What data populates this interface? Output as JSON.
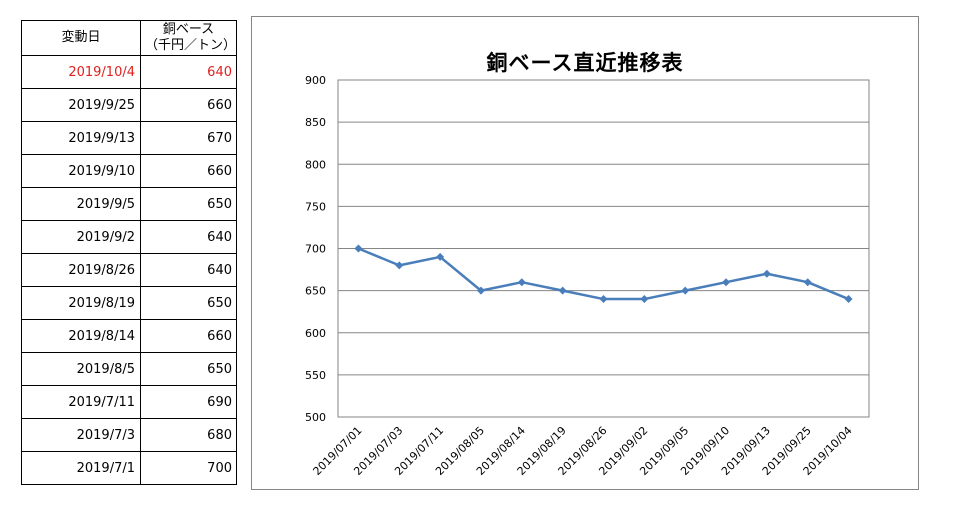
{
  "table": {
    "header_date": "変動日",
    "header_price_line1": "銅ベース",
    "header_price_line2": "（千円／トン）",
    "highlight_color": "#e02020",
    "rows": [
      {
        "date": "2019/10/4",
        "price": "640",
        "highlight": true
      },
      {
        "date": "2019/9/25",
        "price": "660"
      },
      {
        "date": "2019/9/13",
        "price": "670"
      },
      {
        "date": "2019/9/10",
        "price": "660"
      },
      {
        "date": "2019/9/5",
        "price": "650"
      },
      {
        "date": "2019/9/2",
        "price": "640"
      },
      {
        "date": "2019/8/26",
        "price": "640"
      },
      {
        "date": "2019/8/19",
        "price": "650"
      },
      {
        "date": "2019/8/14",
        "price": "660"
      },
      {
        "date": "2019/8/5",
        "price": "650"
      },
      {
        "date": "2019/7/11",
        "price": "690"
      },
      {
        "date": "2019/7/3",
        "price": "680"
      },
      {
        "date": "2019/7/1",
        "price": "700"
      }
    ]
  },
  "chart_data": {
    "type": "line",
    "title": "銅ベース直近推移表",
    "xlabel": "",
    "ylabel": "",
    "ylim": [
      500,
      900
    ],
    "yticks": [
      500,
      550,
      600,
      650,
      700,
      750,
      800,
      850,
      900
    ],
    "grid": true,
    "line_color": "#4a7ebb",
    "categories": [
      "2019/07/01",
      "2019/07/03",
      "2019/07/11",
      "2019/08/05",
      "2019/08/14",
      "2019/08/19",
      "2019/08/26",
      "2019/09/02",
      "2019/09/05",
      "2019/09/10",
      "2019/09/13",
      "2019/09/25",
      "2019/10/04"
    ],
    "series": [
      {
        "values": [
          700,
          680,
          690,
          650,
          660,
          650,
          640,
          640,
          650,
          660,
          670,
          660,
          640
        ]
      }
    ]
  }
}
